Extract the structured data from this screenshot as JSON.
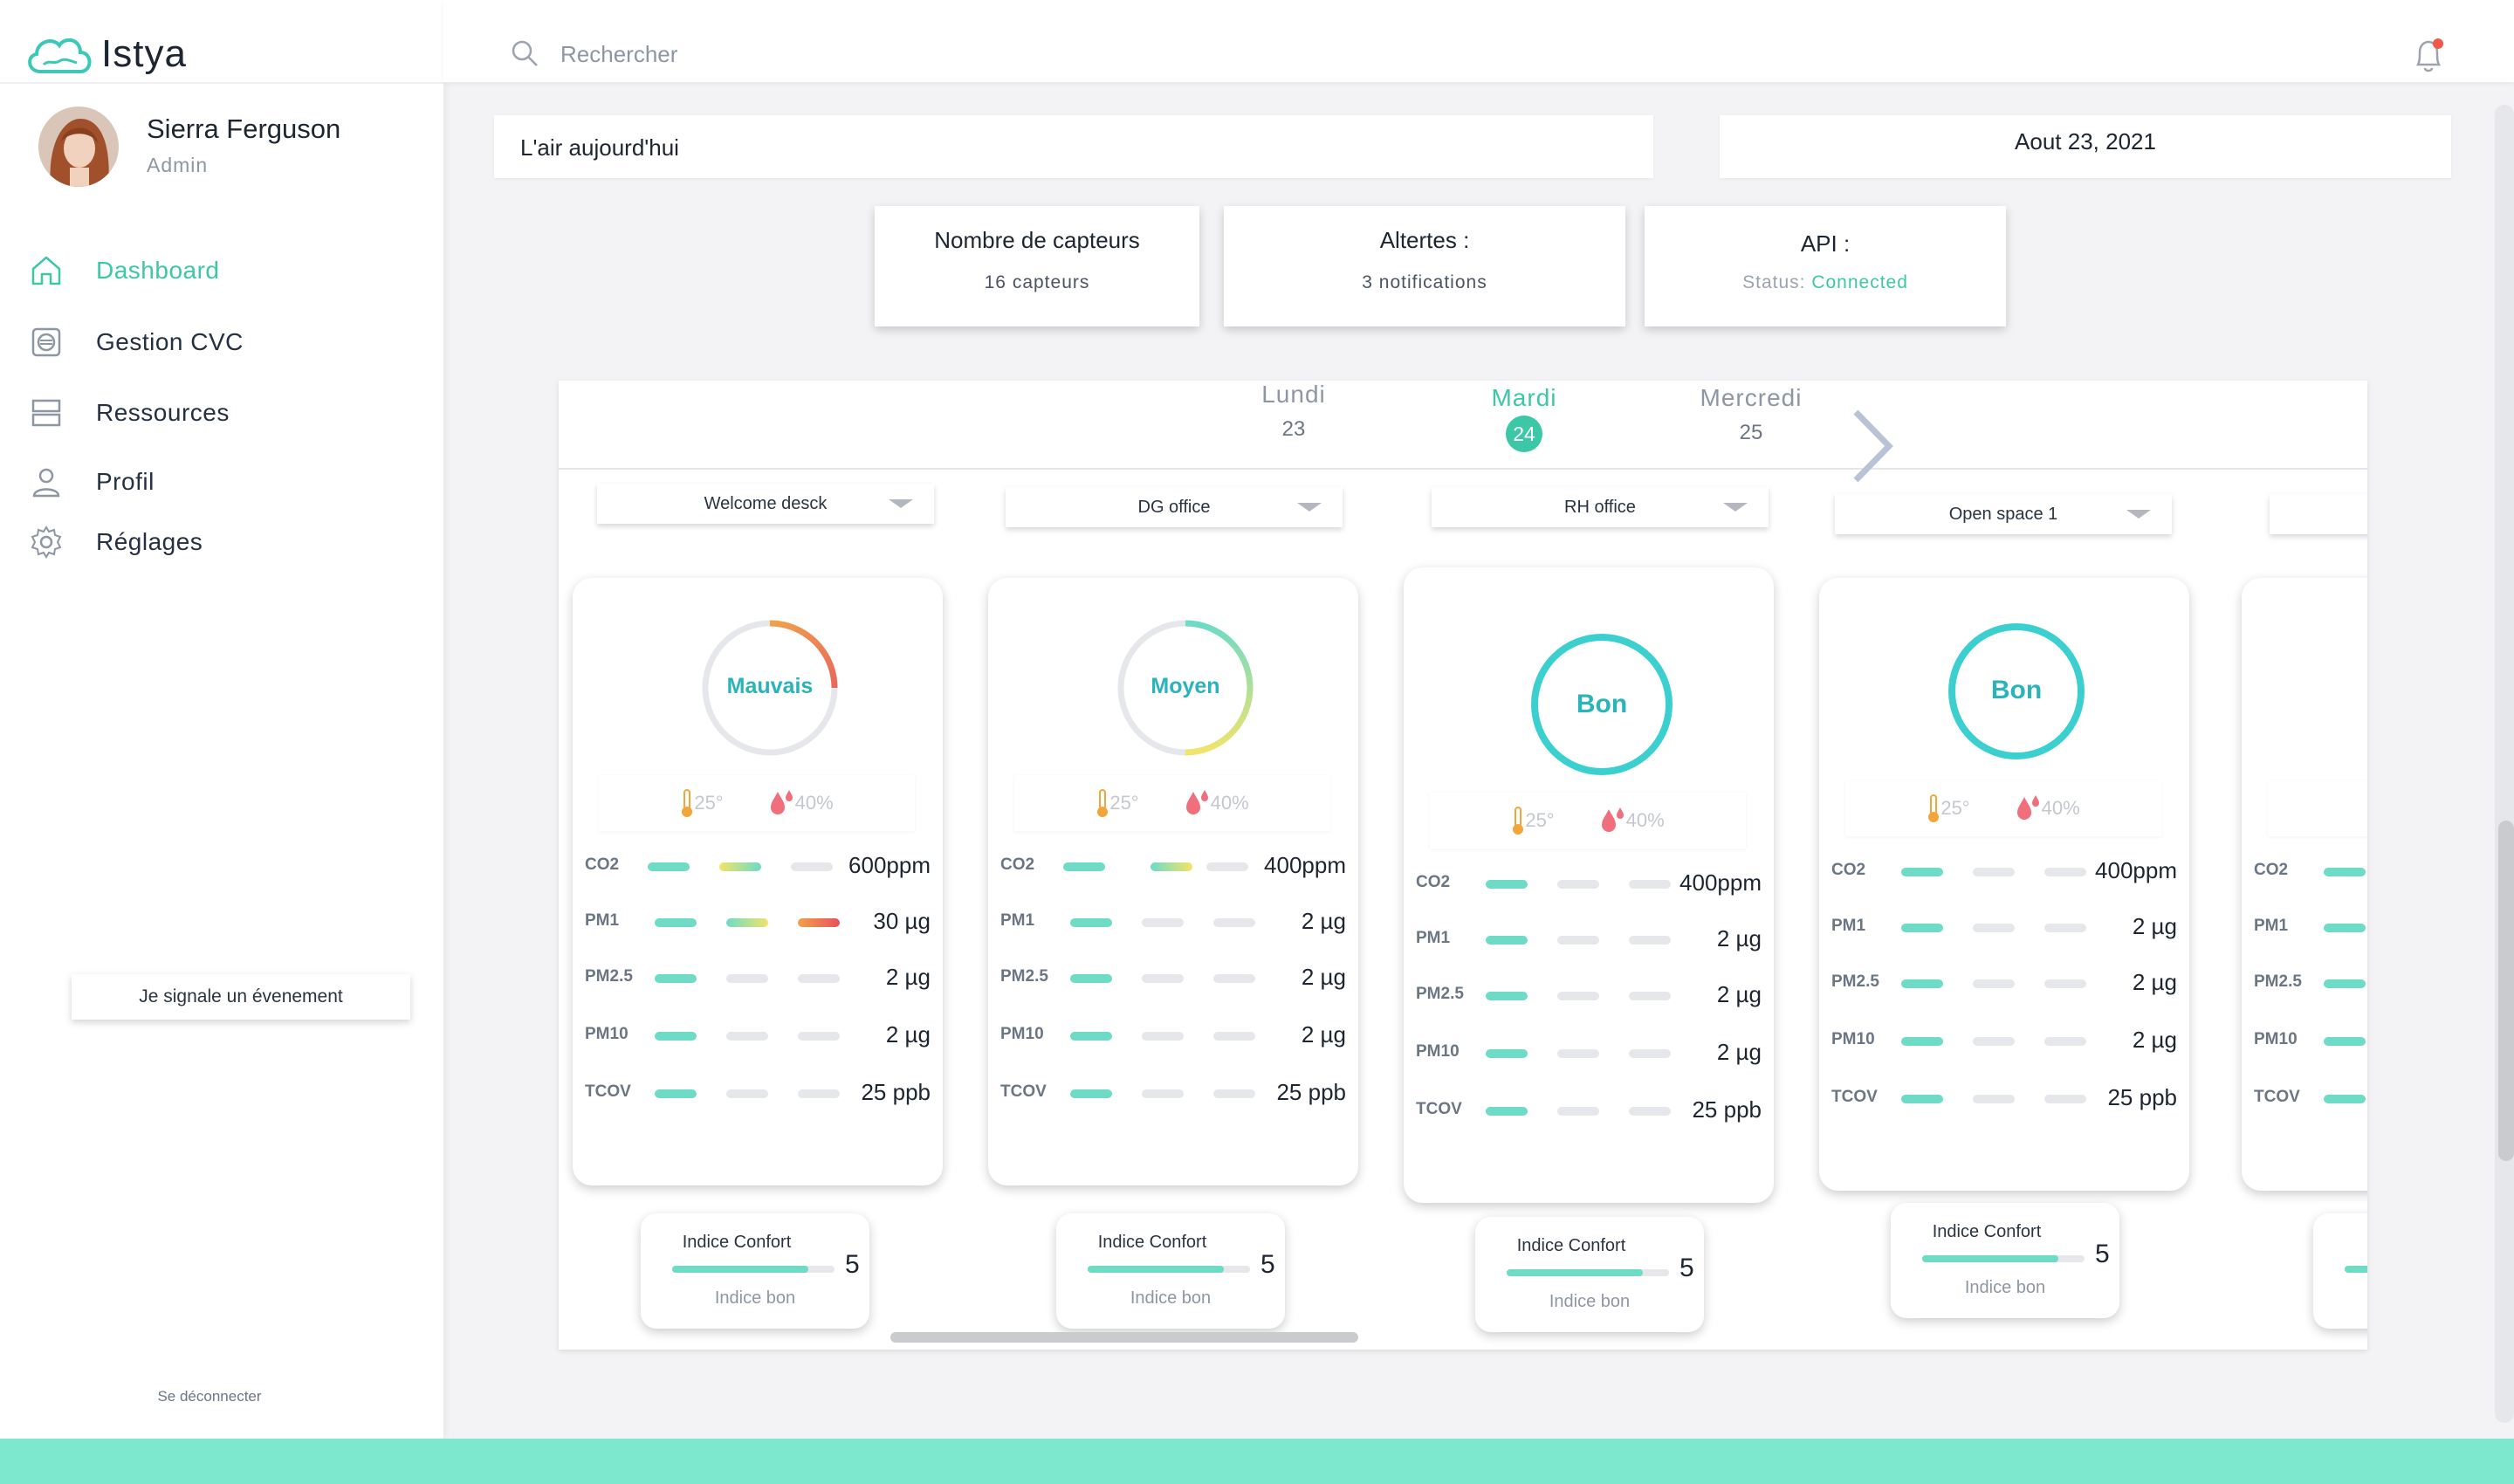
{
  "app": {
    "name": "Istya"
  },
  "user": {
    "name": "Sierra Ferguson",
    "role": "Admin"
  },
  "sidebar": {
    "items": [
      {
        "label": "Dashboard",
        "icon": "home-icon",
        "active": true
      },
      {
        "label": "Gestion CVC",
        "icon": "hvac-icon"
      },
      {
        "label": "Ressources",
        "icon": "server-icon"
      },
      {
        "label": "Profil",
        "icon": "user-icon"
      },
      {
        "label": "Réglages",
        "icon": "gear-icon"
      }
    ],
    "report_button": "Je  signale  un évenement",
    "logout": "Se déconnecter"
  },
  "search": {
    "placeholder": "Rechercher"
  },
  "header": {
    "air_title": "L'air aujourd'hui",
    "date": "Aout  23, 2021"
  },
  "stats": {
    "sensors": {
      "title": "Nombre de capteurs",
      "value": "16  capteurs"
    },
    "alerts": {
      "title": "Altertes :",
      "value": "3  notifications"
    },
    "api": {
      "title": "API :",
      "status_label": "Status: ",
      "status_value": "Connected"
    }
  },
  "days": [
    {
      "name": "Lundi",
      "num": "23"
    },
    {
      "name": "Mardi",
      "num": "24",
      "active": true
    },
    {
      "name": "Mercredi",
      "num": "25"
    }
  ],
  "rooms": [
    {
      "dropdown": "Welcome desck",
      "status": "Mauvais",
      "temp": "25°",
      "humidity": "40%",
      "metrics": [
        {
          "name": "CO2",
          "value": "600ppm"
        },
        {
          "name": "PM1",
          "value": "30 µg"
        },
        {
          "name": "PM2.5",
          "value": "2 µg"
        },
        {
          "name": "PM10",
          "value": "2 µg"
        },
        {
          "name": "TCOV",
          "value": "25 ppb"
        }
      ],
      "confort": {
        "title": "Indice Confort",
        "score": "5",
        "label": "Indice bon"
      }
    },
    {
      "dropdown": "DG  office",
      "status": "Moyen",
      "temp": "25°",
      "humidity": "40%",
      "metrics": [
        {
          "name": "CO2",
          "value": "400ppm"
        },
        {
          "name": "PM1",
          "value": "2 µg"
        },
        {
          "name": "PM2.5",
          "value": "2 µg"
        },
        {
          "name": "PM10",
          "value": "2 µg"
        },
        {
          "name": "TCOV",
          "value": "25 ppb"
        }
      ],
      "confort": {
        "title": "Indice Confort",
        "score": "5",
        "label": "Indice bon"
      }
    },
    {
      "dropdown": "RH office",
      "status": "Bon",
      "temp": "25°",
      "humidity": "40%",
      "metrics": [
        {
          "name": "CO2",
          "value": "400ppm"
        },
        {
          "name": "PM1",
          "value": "2 µg"
        },
        {
          "name": "PM2.5",
          "value": "2 µg"
        },
        {
          "name": "PM10",
          "value": "2 µg"
        },
        {
          "name": "TCOV",
          "value": "25 ppb"
        }
      ],
      "confort": {
        "title": "Indice Confort",
        "score": "5",
        "label": "Indice bon"
      }
    },
    {
      "dropdown": "Open space 1",
      "status": "Bon",
      "temp": "25°",
      "humidity": "40%",
      "metrics": [
        {
          "name": "CO2",
          "value": "400ppm"
        },
        {
          "name": "PM1",
          "value": "2 µg"
        },
        {
          "name": "PM2.5",
          "value": "2 µg"
        },
        {
          "name": "PM10",
          "value": "2 µg"
        },
        {
          "name": "TCOV",
          "value": "25 ppb"
        }
      ],
      "confort": {
        "title": "Indice Confort",
        "score": "5",
        "label": "Indice bon"
      }
    },
    {
      "metrics": [
        {
          "name": "CO2"
        },
        {
          "name": "PM1"
        },
        {
          "name": "PM2.5"
        },
        {
          "name": "PM10"
        },
        {
          "name": "TCOV"
        }
      ]
    }
  ],
  "colors": {
    "accent": "#3cc8a6",
    "gauge_bad": "#e9685a",
    "gauge_mid": "#f2e46a",
    "gauge_good": "#3ccfd0",
    "footer": "#7ee8cf"
  }
}
